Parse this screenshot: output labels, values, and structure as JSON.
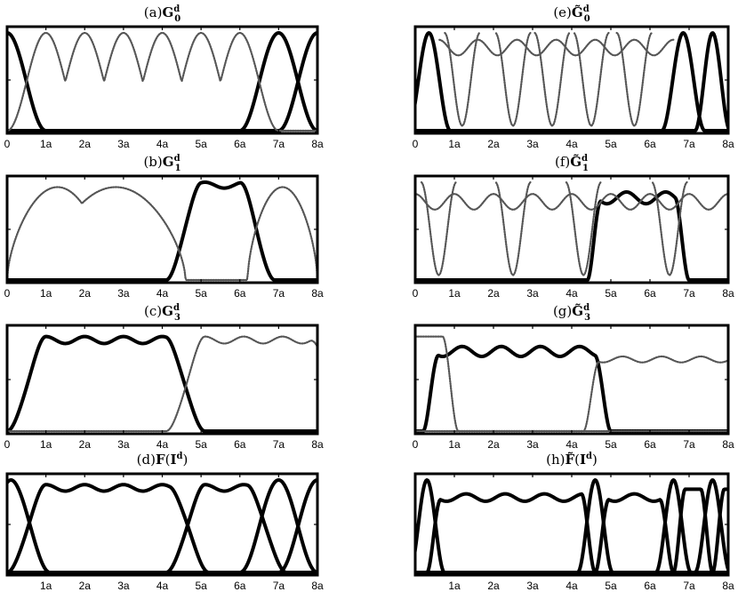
{
  "figure": {
    "panels": [
      {
        "id": "a",
        "title": {
          "prefix": "(a)",
          "sym": "G",
          "tilde": false,
          "paren": "",
          "sup": "d",
          "sub": "0"
        },
        "xticks": [
          "0",
          "1a",
          "2a",
          "3a",
          "4a",
          "5a",
          "6a",
          "7a",
          "8a"
        ]
      },
      {
        "id": "e",
        "title": {
          "prefix": "(e)",
          "sym": "G",
          "tilde": true,
          "paren": "",
          "sup": "d",
          "sub": "0"
        },
        "xticks": [
          "0",
          "1a",
          "2a",
          "3a",
          "4a",
          "5a",
          "6a",
          "7a",
          "8a"
        ]
      },
      {
        "id": "b",
        "title": {
          "prefix": "(b)",
          "sym": "G",
          "tilde": false,
          "paren": "",
          "sup": "d",
          "sub": "1"
        },
        "xticks": [
          "0",
          "1a",
          "2a",
          "3a",
          "4a",
          "5a",
          "6a",
          "7a",
          "8a"
        ]
      },
      {
        "id": "f",
        "title": {
          "prefix": "(f)",
          "sym": "G",
          "tilde": true,
          "paren": "",
          "sup": "d",
          "sub": "1"
        },
        "xticks": [
          "0",
          "1a",
          "2a",
          "3a",
          "4a",
          "5a",
          "6a",
          "7a",
          "8a"
        ]
      },
      {
        "id": "c",
        "title": {
          "prefix": "(c)",
          "sym": "G",
          "tilde": false,
          "paren": "",
          "sup": "d",
          "sub": "3"
        },
        "xticks": [
          "0",
          "1a",
          "2a",
          "3a",
          "4a",
          "5a",
          "6a",
          "7a",
          "8a"
        ]
      },
      {
        "id": "g",
        "title": {
          "prefix": "(g)",
          "sym": "G",
          "tilde": true,
          "paren": "",
          "sup": "d",
          "sub": "3"
        },
        "xticks": [
          "0",
          "1a",
          "2a",
          "3a",
          "4a",
          "5a",
          "6a",
          "7a",
          "8a"
        ]
      },
      {
        "id": "d",
        "title": {
          "prefix": "(d)",
          "sym": "F",
          "tilde": false,
          "paren": "(I",
          "sup": "d",
          "sub": "",
          "close": ")"
        },
        "xticks": [
          "",
          "1a",
          "2a",
          "3a",
          "4a",
          "5a",
          "6a",
          "7a",
          "8a"
        ]
      },
      {
        "id": "h",
        "title": {
          "prefix": "(h)",
          "sym": "F",
          "tilde": true,
          "paren": "(I",
          "sup": "d",
          "sub": "",
          "close": ")"
        },
        "xticks": [
          "",
          "1a",
          "2a",
          "3a",
          "4a",
          "5a",
          "6a",
          "7a",
          "8a"
        ]
      }
    ]
  },
  "chart_data": [
    {
      "panel": "a",
      "type": "line",
      "xlim": [
        0,
        8
      ],
      "ylim": [
        0,
        1
      ],
      "grid": false,
      "series": [
        {
          "style": "solid",
          "kind": "cosine",
          "centers": [
            0,
            7
          ],
          "halfwidth": 1
        },
        {
          "style": "solid",
          "kind": "cosine",
          "centers": [
            8
          ],
          "halfwidth": 1
        },
        {
          "style": "dotted",
          "kind": "cosine",
          "centers": [
            1,
            2,
            3,
            4,
            5,
            6
          ],
          "halfwidth": 1
        }
      ]
    },
    {
      "panel": "e",
      "type": "line",
      "xlim": [
        0,
        8
      ],
      "ylim": [
        0,
        1
      ],
      "grid": false,
      "series": [
        {
          "style": "solid",
          "kind": "peak",
          "centers": [
            0.35,
            6.85
          ],
          "halfwidth": 0.55
        },
        {
          "style": "solid",
          "kind": "peak",
          "centers": [
            7.6
          ],
          "halfwidth": 0.45
        },
        {
          "style": "dotted",
          "kind": "envelope",
          "range": [
            0.6,
            6.6
          ],
          "level": 0.85
        },
        {
          "style": "dotted",
          "kind": "dips",
          "centers": [
            1.2,
            2.5,
            3.5,
            4.5,
            5.6
          ],
          "halfwidth": 0.45
        }
      ]
    },
    {
      "panel": "b",
      "type": "line",
      "xlim": [
        0,
        8
      ],
      "ylim": [
        0,
        1
      ],
      "grid": false,
      "series": [
        {
          "style": "solid",
          "kind": "plateau",
          "range": [
            4.1,
            6.9
          ],
          "edge": 0.9,
          "level": 1.0,
          "wiggle": 0.06
        },
        {
          "style": "dotted",
          "kind": "arches",
          "ranges": [
            [
              0,
              2.6
            ],
            [
              1.0,
              4.6
            ],
            [
              6.2,
              8
            ]
          ],
          "level": 0.95
        }
      ]
    },
    {
      "panel": "f",
      "type": "line",
      "xlim": [
        0,
        8
      ],
      "ylim": [
        0,
        1
      ],
      "grid": false,
      "series": [
        {
          "style": "solid",
          "kind": "plateau",
          "range": [
            4.4,
            7.0
          ],
          "edge": 0.35,
          "level": 0.9,
          "wiggle": 0.12
        },
        {
          "style": "dotted",
          "kind": "envelope",
          "range": [
            0,
            8
          ],
          "level": 0.8
        },
        {
          "style": "dotted",
          "kind": "dips",
          "centers": [
            0.6,
            2.5,
            4.3,
            6.5
          ],
          "halfwidth": 0.45
        }
      ]
    },
    {
      "panel": "c",
      "type": "line",
      "xlim": [
        0,
        8
      ],
      "ylim": [
        0,
        1
      ],
      "grid": false,
      "series": [
        {
          "style": "solid",
          "kind": "plateau",
          "range": [
            0,
            5.1
          ],
          "edge": 1.0,
          "level": 0.95,
          "wiggle": 0.07
        },
        {
          "style": "dotted",
          "kind": "plateau",
          "range": [
            4.1,
            8.8
          ],
          "edge": 1.0,
          "level": 0.95,
          "wiggle": 0.07
        }
      ]
    },
    {
      "panel": "g",
      "type": "line",
      "xlim": [
        0,
        8
      ],
      "ylim": [
        0,
        1
      ],
      "grid": false,
      "series": [
        {
          "style": "solid",
          "kind": "plateau",
          "range": [
            0.2,
            5.0
          ],
          "edge": 0.4,
          "level": 0.85,
          "wiggle": 0.1
        },
        {
          "style": "dotted",
          "kind": "plateau",
          "range": [
            4.3,
            8.8
          ],
          "edge": 0.4,
          "level": 0.75,
          "wiggle": 0.06
        },
        {
          "style": "dotted",
          "kind": "plateau",
          "range": [
            -0.5,
            1.1
          ],
          "edge": 0.4,
          "level": 0.95,
          "wiggle": 0.0
        }
      ]
    },
    {
      "panel": "d",
      "type": "line",
      "xlim": [
        0,
        8
      ],
      "ylim": [
        0,
        1
      ],
      "grid": false,
      "series": [
        {
          "style": "solid",
          "kind": "plateau",
          "range": [
            -0.9,
            1.1
          ],
          "edge": 1.0,
          "level": 1.0,
          "wiggle": 0.0
        },
        {
          "style": "solid",
          "kind": "plateau",
          "range": [
            0,
            5.2
          ],
          "edge": 1.0,
          "level": 0.95,
          "wiggle": 0.07
        },
        {
          "style": "solid",
          "kind": "plateau",
          "range": [
            4.1,
            7.2
          ],
          "edge": 1.0,
          "level": 0.95,
          "wiggle": 0.07
        },
        {
          "style": "solid",
          "kind": "cosine",
          "centers": [
            7
          ],
          "halfwidth": 1
        },
        {
          "style": "solid",
          "kind": "cosine",
          "centers": [
            8
          ],
          "halfwidth": 1
        }
      ]
    },
    {
      "panel": "h",
      "type": "line",
      "xlim": [
        0,
        8
      ],
      "ylim": [
        0,
        1
      ],
      "grid": false,
      "series": [
        {
          "style": "solid",
          "kind": "peak",
          "centers": [
            0.3,
            4.6,
            6.6,
            7.6
          ],
          "halfwidth": 0.45
        },
        {
          "style": "solid",
          "kind": "plateau",
          "range": [
            0.3,
            4.6
          ],
          "edge": 0.35,
          "level": 0.85,
          "wiggle": 0.08
        },
        {
          "style": "solid",
          "kind": "plateau",
          "range": [
            4.6,
            6.6
          ],
          "edge": 0.35,
          "level": 0.85,
          "wiggle": 0.08
        },
        {
          "style": "solid",
          "kind": "plateau",
          "range": [
            6.6,
            7.6
          ],
          "edge": 0.3,
          "level": 0.9,
          "wiggle": 0.0
        },
        {
          "style": "solid",
          "kind": "plateau",
          "range": [
            7.6,
            8.5
          ],
          "edge": 0.3,
          "level": 0.9,
          "wiggle": 0.0
        }
      ]
    }
  ]
}
